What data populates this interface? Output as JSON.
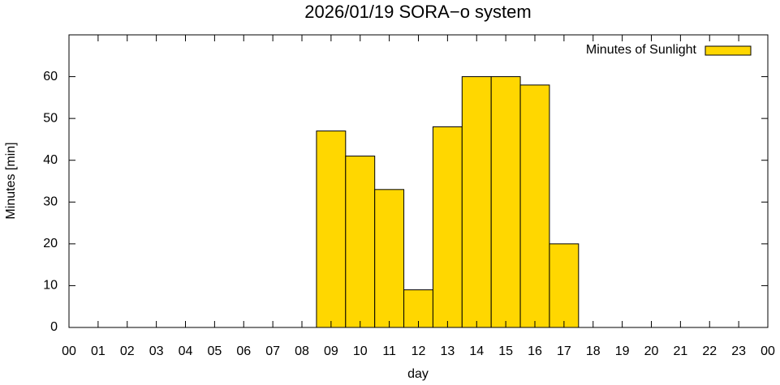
{
  "chart_data": {
    "type": "bar",
    "title": "2026/01/19 SORA−o system",
    "xlabel": "day",
    "ylabel": "Minutes [min]",
    "x": [
      9,
      10,
      11,
      12,
      13,
      14,
      15,
      16,
      17
    ],
    "series": [
      {
        "name": "Minutes of Sunlight",
        "color": "#ffd700",
        "values": [
          47,
          41,
          33,
          9,
          48,
          60,
          60,
          58,
          20
        ]
      }
    ],
    "bar_width": 1,
    "xlim": [
      0,
      24
    ],
    "xticks": [
      {
        "value": 0,
        "label": "00"
      },
      {
        "value": 1,
        "label": "01"
      },
      {
        "value": 2,
        "label": "02"
      },
      {
        "value": 3,
        "label": "03"
      },
      {
        "value": 4,
        "label": "04"
      },
      {
        "value": 5,
        "label": "05"
      },
      {
        "value": 6,
        "label": "06"
      },
      {
        "value": 7,
        "label": "07"
      },
      {
        "value": 8,
        "label": "08"
      },
      {
        "value": 9,
        "label": "09"
      },
      10,
      11,
      12,
      13,
      14,
      15,
      16,
      17,
      18,
      19,
      20,
      21,
      22,
      23,
      {
        "value": 24,
        "label": "00"
      }
    ],
    "ylim": [
      0,
      70
    ],
    "yticks": [
      0,
      10,
      20,
      30,
      40,
      50,
      60
    ],
    "legend": "top-right",
    "grid": false
  }
}
